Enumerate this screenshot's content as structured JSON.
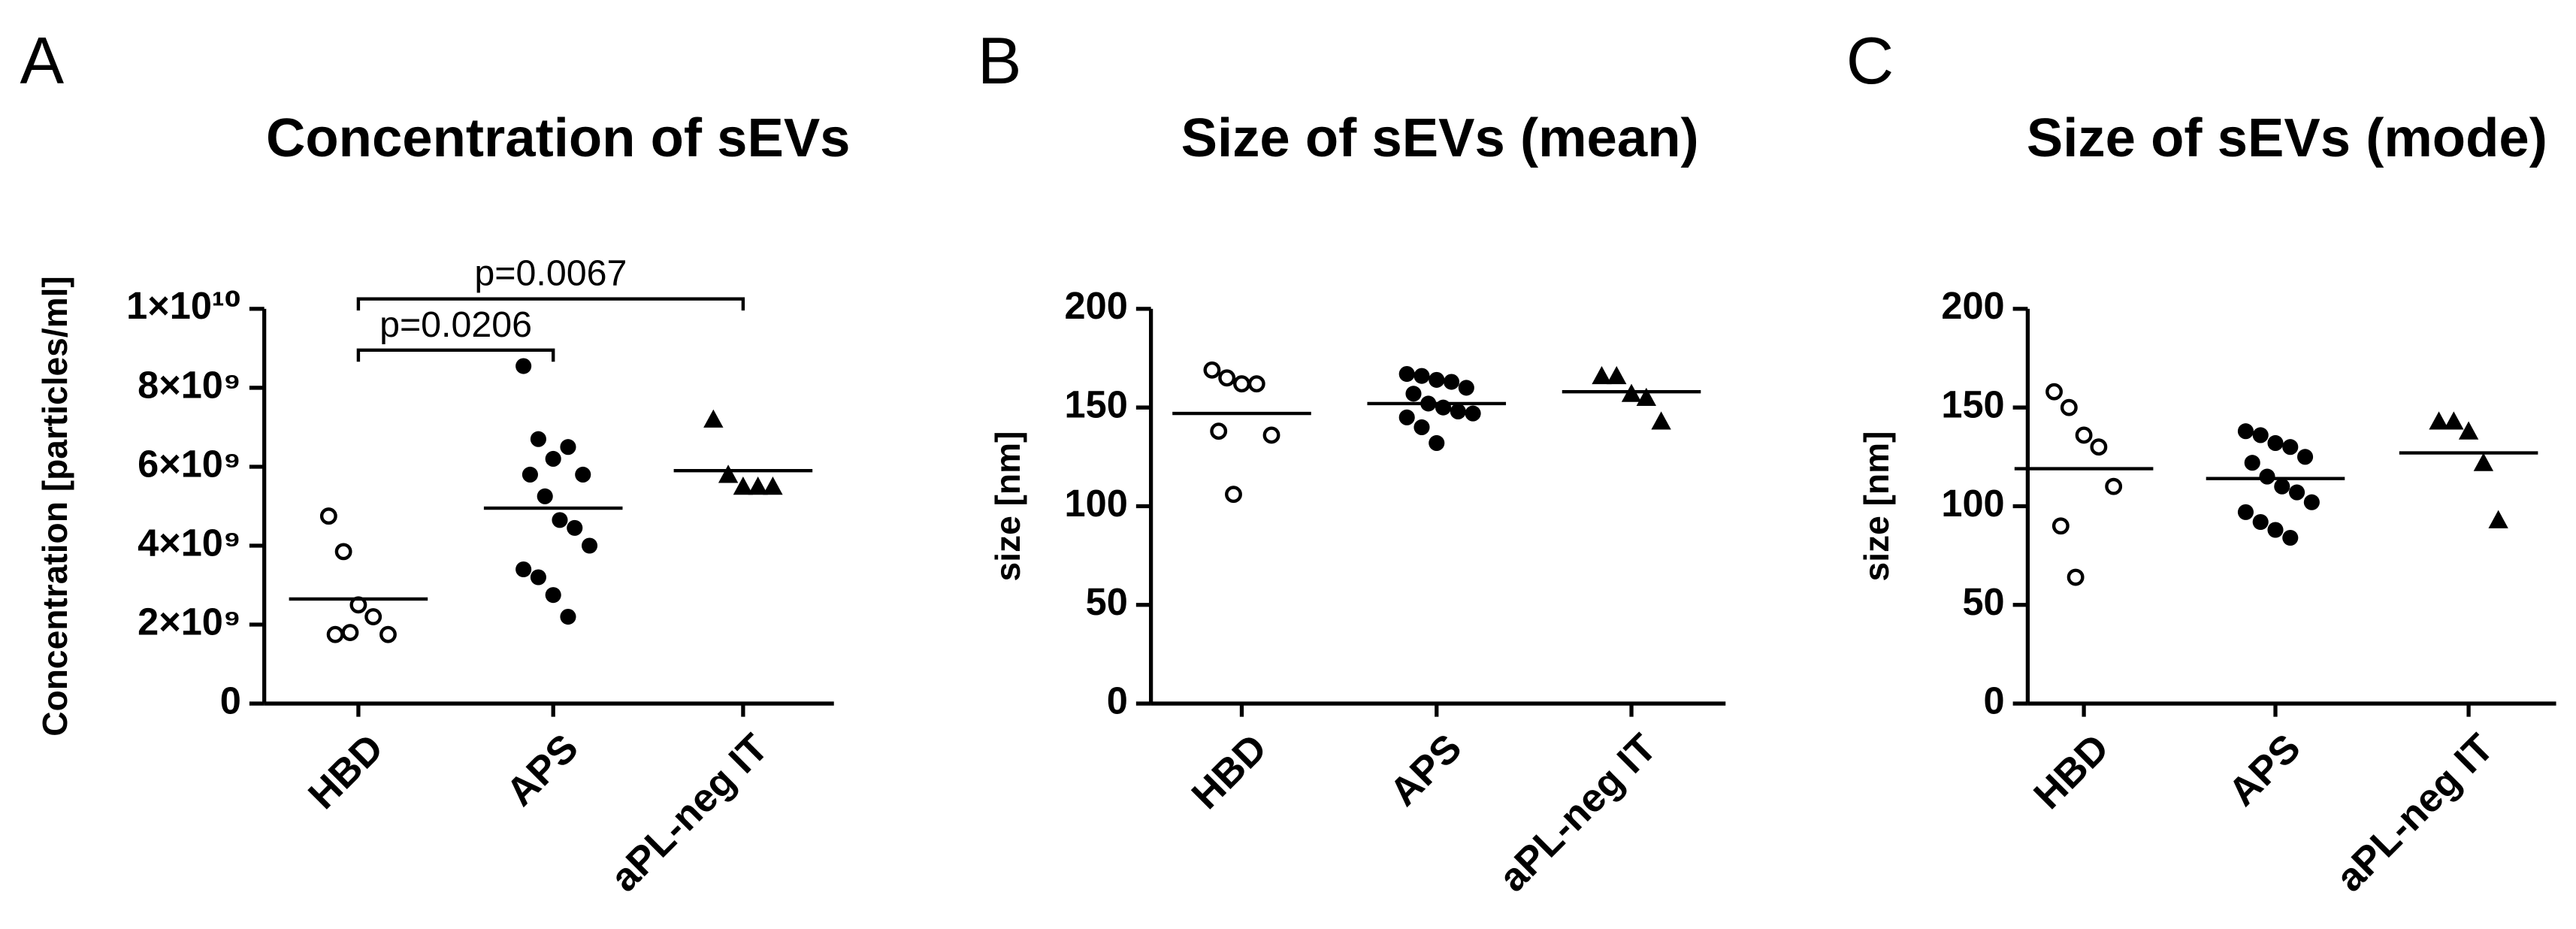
{
  "chart_data": [
    {
      "type": "dot",
      "letter": "A",
      "title": "Concentration of sEVs",
      "ylabel": "Concentration [particles/ml]",
      "categories": [
        "HBD",
        "APS",
        "aPL-neg IT"
      ],
      "markers": [
        "open-circle",
        "circle",
        "triangle"
      ],
      "groups": [
        [
          4750000000,
          3850000000,
          2500000000,
          2200000000,
          1750000000,
          1750000000,
          1800000000
        ],
        [
          8550000000,
          6700000000,
          6200000000,
          6500000000,
          5800000000,
          5800000000,
          5250000000,
          4650000000,
          4450000000,
          4000000000,
          3400000000,
          3200000000,
          2750000000,
          2200000000
        ],
        [
          7200000000,
          5800000000,
          5500000000,
          5500000000,
          5500000000
        ]
      ],
      "means": [
        2650000000,
        4950000000,
        5900000000
      ],
      "annotations": [
        "p=0.0206",
        "p=0.0067"
      ],
      "ylim": [
        0,
        10000000000
      ],
      "yticks": [
        0,
        {
          "value": 2000000000,
          "label": "2×10⁹"
        },
        {
          "value": 4000000000,
          "label": "4×10⁹"
        },
        {
          "value": 6000000000,
          "label": "6×10⁹"
        },
        {
          "value": 8000000000,
          "label": "8×10⁹"
        },
        {
          "value": 10000000000,
          "label": "1×10¹⁰"
        }
      ]
    },
    {
      "type": "dot",
      "letter": "B",
      "title": "Size of sEVs (mean)",
      "ylabel": "size [nm]",
      "categories": [
        "HBD",
        "APS",
        "aPL-neg IT"
      ],
      "markers": [
        "open-circle",
        "circle",
        "triangle"
      ],
      "groups": [
        [
          169,
          165,
          162,
          162,
          136,
          138,
          106
        ],
        [
          167,
          166,
          164,
          163,
          160,
          157,
          152,
          150,
          148,
          147,
          145,
          140,
          132
        ],
        [
          166,
          166,
          157,
          155,
          143
        ]
      ],
      "means": [
        147,
        152,
        158
      ],
      "ylim": [
        0,
        200
      ],
      "yticks": [
        0,
        50,
        100,
        150,
        200
      ]
    },
    {
      "type": "dot",
      "letter": "C",
      "title": "Size of sEVs (mode)",
      "ylabel": "size [nm]",
      "categories": [
        "HBD",
        "APS",
        "aPL-neg IT"
      ],
      "markers": [
        "open-circle",
        "circle",
        "triangle"
      ],
      "groups": [
        [
          158,
          150,
          136,
          130,
          110,
          90,
          64
        ],
        [
          138,
          136,
          132,
          130,
          125,
          122,
          115,
          110,
          107,
          102,
          97,
          92,
          88,
          84
        ],
        [
          143,
          143,
          138,
          122,
          93
        ]
      ],
      "means": [
        119,
        114,
        127
      ],
      "ylim": [
        0,
        200
      ],
      "yticks": [
        0,
        50,
        100,
        150,
        200
      ]
    }
  ]
}
